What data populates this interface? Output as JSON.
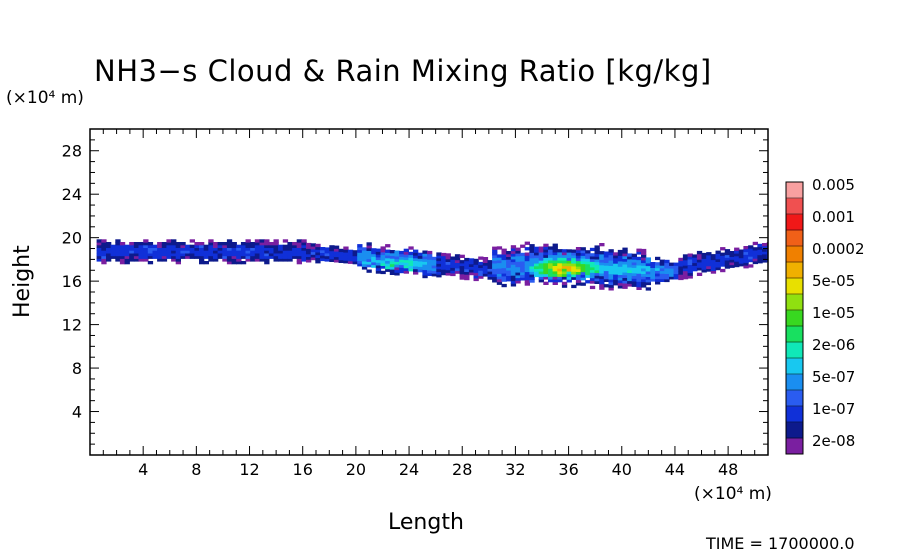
{
  "chart_data": {
    "type": "heatmap",
    "title": "NH3−s Cloud & Rain Mixing Ratio [kg/kg]",
    "xlabel": "Length",
    "ylabel": "Height",
    "x_unit": "(×10⁴ m)",
    "y_unit": "(×10⁴ m)",
    "xlim": [
      0,
      51
    ],
    "ylim": [
      0,
      30
    ],
    "x_ticks": [
      4,
      8,
      12,
      16,
      20,
      24,
      28,
      32,
      36,
      40,
      44,
      48
    ],
    "y_ticks": [
      4,
      8,
      12,
      16,
      20,
      24,
      28
    ],
    "time_label": "TIME = 1700000.0",
    "colorbar": {
      "colors": [
        "#7a1fa0",
        "#0d1a8c",
        "#1030d8",
        "#2a5cf0",
        "#1a8ef0",
        "#18c8f0",
        "#10e8b8",
        "#18e060",
        "#38d820",
        "#90e010",
        "#e8e000",
        "#f0b000",
        "#f08000",
        "#f06018",
        "#f01818",
        "#f05050",
        "#f8a0a0"
      ],
      "labels": [
        "2e-08",
        "1e-07",
        "5e-07",
        "2e-06",
        "1e-05",
        "5e-05",
        "0.0002",
        "0.001",
        "0.005"
      ]
    },
    "cloud_band": {
      "x_extent": [
        0.5,
        51
      ],
      "height_range": [
        15.5,
        19.5
      ],
      "peak_x": 35.5,
      "peak_height": 17
    }
  }
}
